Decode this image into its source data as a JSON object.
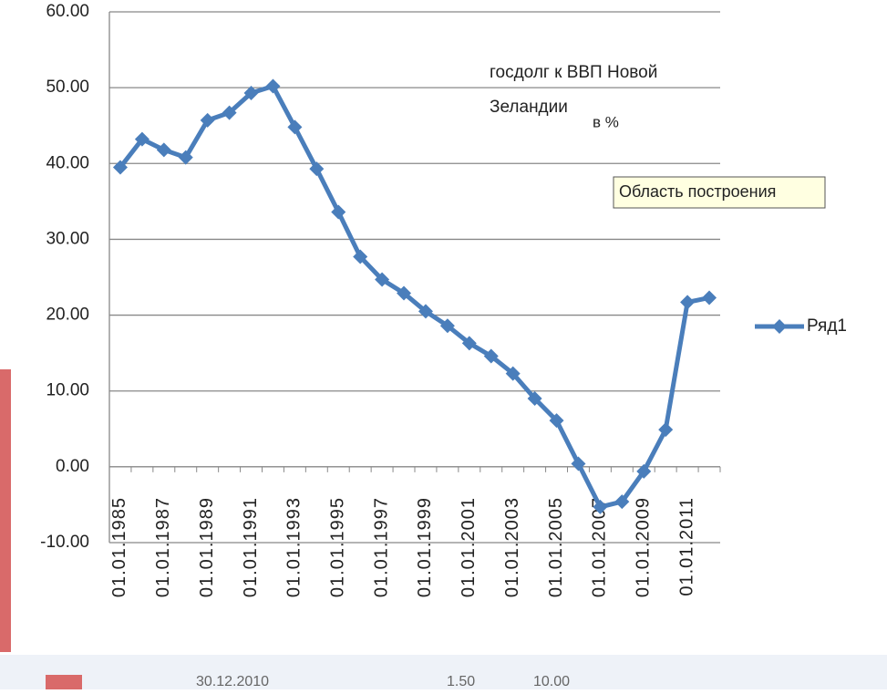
{
  "chart_data": {
    "type": "line",
    "annotation": "госдолг к ВВП Новой Зеландии",
    "annotation_unit": "в %",
    "tooltip": "Область построения",
    "categories": [
      "01.01.1985",
      null,
      "01.01.1987",
      null,
      "01.01.1989",
      null,
      "01.01.1991",
      null,
      "01.01.1993",
      null,
      "01.01.1995",
      null,
      "01.01.1997",
      null,
      "01.01.1999",
      null,
      "01.01.2001",
      null,
      "01.01.2003",
      null,
      "01.01.2005",
      null,
      "01.01.2007",
      null,
      "01.01.2009",
      null,
      "01.01.2011",
      null
    ],
    "series": [
      {
        "name": "Ряд1",
        "color": "#4a7ebb",
        "values": [
          39.5,
          43.2,
          41.8,
          40.8,
          45.7,
          46.7,
          49.3,
          50.2,
          44.8,
          39.3,
          33.6,
          27.7,
          24.7,
          22.9,
          20.5,
          18.6,
          16.3,
          14.6,
          12.3,
          9.0,
          6.1,
          0.4,
          -5.3,
          -4.6,
          -0.6,
          4.9,
          21.7,
          22.3
        ]
      }
    ],
    "ylim": [
      -10,
      60
    ],
    "yticks": [
      {
        "value": -10,
        "label": "-10.00"
      },
      {
        "value": 0,
        "label": "0.00"
      },
      {
        "value": 10,
        "label": "10.00"
      },
      {
        "value": 20,
        "label": "20.00"
      },
      {
        "value": 30,
        "label": "30.00"
      },
      {
        "value": 40,
        "label": "40.00"
      },
      {
        "value": 50,
        "label": "50.00"
      },
      {
        "value": 60,
        "label": "60.00"
      }
    ],
    "grid": true,
    "legend": "right"
  },
  "fragments": [
    "30.12.2010",
    "1.50",
    "10.00"
  ]
}
